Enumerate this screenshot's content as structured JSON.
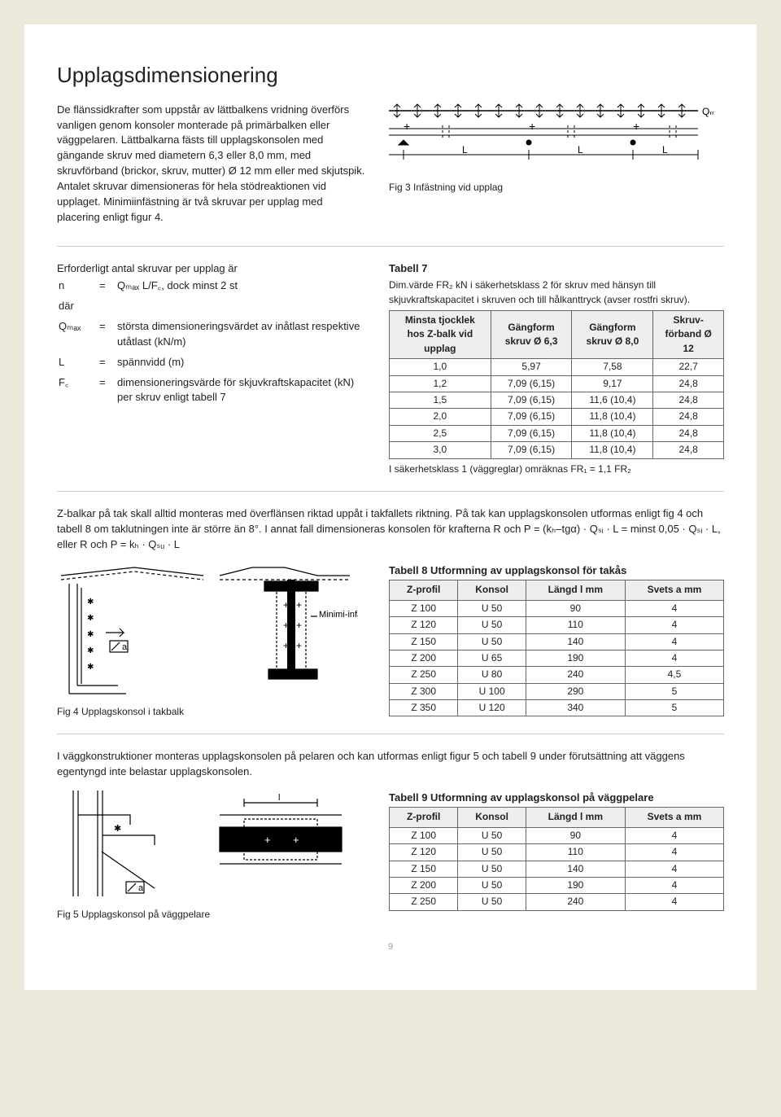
{
  "title": "Upplagsdimensionering",
  "intro": "De flänssidkrafter som uppstår av lättbalkens vridning överförs vanligen genom konsoler monterade på primärbalken eller väggpelaren. Lättbalkarna fästs till upplagskonsolen med gängande skruv med diametern 6,3 eller 8,0 mm, med skruvförband (brickor, skruv, mutter) Ø 12 mm eller med skjutspik. Antalet skruvar dimensioneras för hela stödreaktionen vid upplaget. Minimiinfästning är två skruvar per upplag med placering enligt figur 4.",
  "fig3cap": "Fig 3   Infästning vid upplag",
  "defs": {
    "lead": "Erforderligt antal skruvar per upplag är",
    "n": [
      "n",
      "= ",
      "Qₘₐₓ L/F꜀, dock minst 2 st"
    ],
    "dar": "där",
    "Qmax": [
      "Qₘₐₓ",
      "= ",
      "största dimensioneringsvärdet av inåtlast respektive utåtlast (kN/m)"
    ],
    "L": [
      "L",
      "= ",
      "spännvidd (m)"
    ],
    "FR": [
      "F꜀",
      "= ",
      "dimensioneringsvärde för skjuvkraftskapacitet (kN) per skruv enligt tabell 7"
    ]
  },
  "table7": {
    "title": "Tabell 7",
    "caption": "Dim.värde FR₂ kN i säkerhetsklass 2 för skruv med hänsyn till skjuvkraftskapacitet i skruven och till hålkanttryck (avser rostfri skruv).",
    "headers": [
      "Minsta tjocklek hos Z-balk vid upplag",
      "Gängform skruv Ø 6,3",
      "Gängform skruv Ø 8,0",
      "Skruv-förband Ø 12"
    ],
    "rows": [
      [
        "1,0",
        "5,97",
        "7,58",
        "22,7"
      ],
      [
        "1,2",
        "7,09   (6,15)",
        "9,17",
        "24,8"
      ],
      [
        "1,5",
        "7,09   (6,15)",
        "11,6 (10,4)",
        "24,8"
      ],
      [
        "2,0",
        "7,09   (6,15)",
        "11,8 (10,4)",
        "24,8"
      ],
      [
        "2,5",
        "7,09   (6,15)",
        "11,8 (10,4)",
        "24,8"
      ],
      [
        "3,0",
        "7,09   (6,15)",
        "11,8 (10,4)",
        "24,8"
      ]
    ],
    "note": "I säkerhetsklass 1 (väggreglar) omräknas FR₁ = 1,1 FR₂"
  },
  "midpara": "Z-balkar på tak skall alltid monteras med överflänsen riktad uppåt i takfallets riktning.  På tak kan upplagskonsolen utformas enligt fig 4 och tabell 8 om taklutningen inte är större än 8°. I annat fall dimensioneras konsolen för krafterna R och P = (kₕ–tgα) · Qₛᵢ · L = minst 0,05 · Qₛᵢ · L, eller R och P = kₕ · Qₛᵤ · L",
  "fig4cap": "Fig 4  Upplagskonsol i takbalk",
  "fig4txt": "Minimi-infästningar",
  "table8": {
    "title": "Tabell 8  Utformning av upplagskonsol för takås",
    "headers": [
      "Z-profil",
      "Konsol",
      "Längd l mm",
      "Svets a mm"
    ],
    "rows": [
      [
        "Z 100",
        "U   50",
        "90",
        "4"
      ],
      [
        "Z 120",
        "U   50",
        "110",
        "4"
      ],
      [
        "Z 150",
        "U   50",
        "140",
        "4"
      ],
      [
        "Z 200",
        "U   65",
        "190",
        "4"
      ],
      [
        "Z 250",
        "U   80",
        "240",
        "4,5"
      ],
      [
        "Z 300",
        "U 100",
        "290",
        "5"
      ],
      [
        "Z 350",
        "U 120",
        "340",
        "5"
      ]
    ]
  },
  "wallpara": "I väggkonstruktioner monteras upplagskonsolen på pelaren och kan utformas enligt figur 5 och tabell 9 under förutsättning att väggens egentyngd inte belastar upplagskonsolen.",
  "fig5cap": "Fig 5 Upplagskonsol på väggpelare",
  "table9": {
    "title": "Tabell 9 Utformning av upplagskonsol på väggpelare",
    "headers": [
      "Z-profil",
      "Konsol",
      "Längd l mm",
      "Svets a mm"
    ],
    "rows": [
      [
        "Z 100",
        "U   50",
        "90",
        "4"
      ],
      [
        "Z 120",
        "U   50",
        "110",
        "4"
      ],
      [
        "Z 150",
        "U   50",
        "140",
        "4"
      ],
      [
        "Z 200",
        "U   50",
        "190",
        "4"
      ],
      [
        "Z 250",
        "U   50",
        "240",
        "4"
      ]
    ]
  },
  "pagenum": "9"
}
